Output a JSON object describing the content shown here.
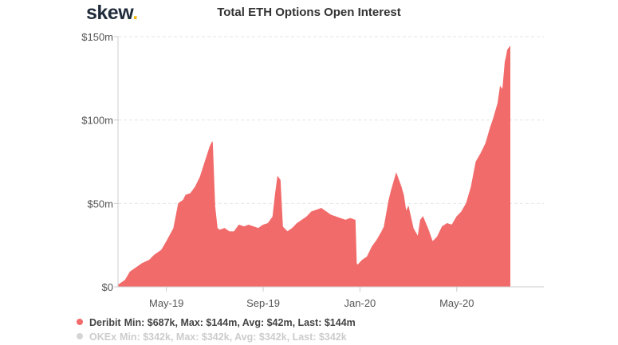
{
  "header": {
    "logo_text": "skew",
    "logo_dot": ".",
    "title": "Total ETH Options Open Interest"
  },
  "colors": {
    "deribit": "#f26b6b",
    "okex": "#d5d5d5",
    "logo_dot": "#f2b90c"
  },
  "legend": {
    "deribit": {
      "name": "Deribit",
      "stats": "Min: $687k, Max: $144m, Avg: $42m, Last: $144m"
    },
    "okex": {
      "name": "OKEx",
      "stats": "Min: $342k, Max: $342k, Avg: $342k, Last: $342k"
    }
  },
  "chart_data": {
    "type": "area",
    "title": "Total ETH Options Open Interest",
    "xlabel": "",
    "ylabel": "",
    "ylim": [
      0,
      150
    ],
    "y_unit": "$m",
    "yticks": [
      0,
      50,
      100,
      150
    ],
    "ytick_labels": [
      "$0",
      "$50m",
      "$100m",
      "$150m"
    ],
    "xlim": [
      0,
      17.6
    ],
    "x_unit": "months since 2019-03-01",
    "xticks": [
      2,
      6,
      10,
      14
    ],
    "xtick_labels": [
      "May-19",
      "Sep-19",
      "Jan-20",
      "May-20"
    ],
    "grid": true,
    "series": [
      {
        "name": "Deribit",
        "x": [
          0,
          0.3,
          0.5,
          0.8,
          1.0,
          1.3,
          1.5,
          1.8,
          2.0,
          2.3,
          2.5,
          2.7,
          2.8,
          3.0,
          3.2,
          3.4,
          3.6,
          3.8,
          3.9,
          4.0,
          4.1,
          4.2,
          4.4,
          4.6,
          4.8,
          5.0,
          5.2,
          5.4,
          5.6,
          5.8,
          6.0,
          6.2,
          6.4,
          6.5,
          6.6,
          6.7,
          6.8,
          7.0,
          7.2,
          7.4,
          7.6,
          7.8,
          8.0,
          8.2,
          8.4,
          8.6,
          8.8,
          9.0,
          9.2,
          9.4,
          9.6,
          9.8,
          9.85,
          9.9,
          10.1,
          10.3,
          10.5,
          10.7,
          10.9,
          11.0,
          11.1,
          11.2,
          11.3,
          11.5,
          11.7,
          11.8,
          11.9,
          12.0,
          12.2,
          12.4,
          12.5,
          12.6,
          12.8,
          13.0,
          13.2,
          13.4,
          13.6,
          13.8,
          14.0,
          14.2,
          14.4,
          14.6,
          14.8,
          15.0,
          15.2,
          15.4,
          15.5,
          15.6,
          15.7,
          15.8,
          15.9,
          16.0,
          16.05,
          16.1,
          16.2
        ],
        "values": [
          1,
          4,
          9,
          12,
          14,
          16,
          19,
          22,
          27,
          35,
          50,
          52,
          55,
          56,
          60,
          66,
          75,
          84,
          87,
          48,
          35,
          34,
          35,
          33,
          33,
          37,
          36,
          37,
          36,
          35,
          37,
          38,
          42,
          55,
          66,
          64,
          36,
          33,
          35,
          38,
          40,
          42,
          45,
          46,
          47,
          45,
          43,
          42,
          41,
          40,
          41,
          40,
          14,
          13,
          16,
          18,
          24,
          28,
          33,
          36,
          44,
          52,
          58,
          68,
          60,
          55,
          45,
          48,
          35,
          30,
          40,
          42,
          35,
          27,
          30,
          36,
          38,
          37,
          42,
          45,
          50,
          60,
          75,
          80,
          86,
          96,
          100,
          105,
          110,
          120,
          118,
          135,
          138,
          142,
          144
        ]
      },
      {
        "name": "OKEx",
        "x": [
          16.2
        ],
        "values": [
          0.342
        ]
      }
    ]
  }
}
